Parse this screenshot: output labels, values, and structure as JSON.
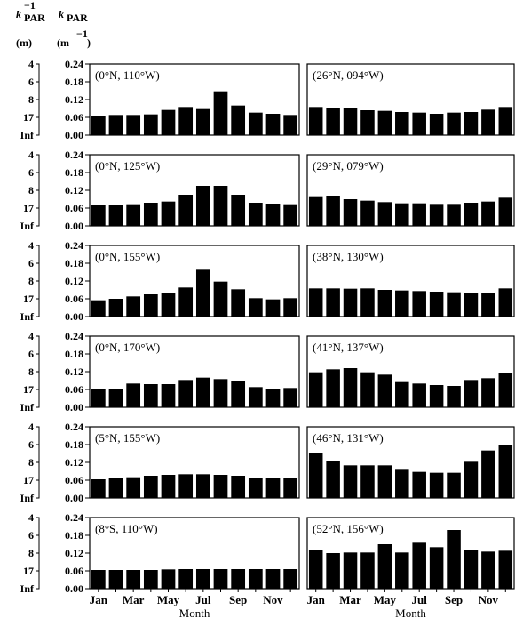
{
  "header": {
    "left_top": "k",
    "left_sub": "PAR",
    "left_sup": "−1",
    "left_unit": "(m)",
    "right_top": "k",
    "right_sub": "PAR",
    "right_unit_base": "(m",
    "right_unit_sup": "−1",
    "right_unit_close": ")"
  },
  "chart_data": {
    "type": "bar",
    "layout": "6 rows × 2 columns of small-multiple bar charts",
    "categories": [
      "Jan",
      "Feb",
      "Mar",
      "Apr",
      "May",
      "Jun",
      "Jul",
      "Aug",
      "Sep",
      "Oct",
      "Nov",
      "Dec"
    ],
    "x_tick_labels": [
      "Jan",
      "Mar",
      "May",
      "Jul",
      "Sep",
      "Nov"
    ],
    "xlabel": "Month",
    "ylim": [
      0,
      0.24
    ],
    "y_ticks": [
      "0.24",
      "0.18",
      "0.12",
      "0.06",
      "0.00"
    ],
    "y_ticks_inverse": [
      "4",
      "6",
      "8",
      "17",
      "Inf"
    ],
    "bar_color": "#000000",
    "panels": [
      {
        "location": "(0°N, 110°W)",
        "values": [
          0.065,
          0.068,
          0.068,
          0.07,
          0.085,
          0.095,
          0.088,
          0.148,
          0.1,
          0.076,
          0.072,
          0.068
        ]
      },
      {
        "location": "(26°N, 094°W)",
        "values": [
          0.095,
          0.092,
          0.09,
          0.084,
          0.082,
          0.078,
          0.076,
          0.072,
          0.076,
          0.078,
          0.086,
          0.095
        ]
      },
      {
        "location": "(0°N, 125°W)",
        "values": [
          0.072,
          0.072,
          0.073,
          0.078,
          0.082,
          0.105,
          0.135,
          0.135,
          0.105,
          0.078,
          0.075,
          0.073
        ]
      },
      {
        "location": "(29°N, 079°W)",
        "values": [
          0.1,
          0.102,
          0.09,
          0.085,
          0.08,
          0.076,
          0.076,
          0.074,
          0.074,
          0.078,
          0.082,
          0.095
        ]
      },
      {
        "location": "(0°N, 155°W)",
        "values": [
          0.055,
          0.06,
          0.068,
          0.075,
          0.08,
          0.098,
          0.158,
          0.118,
          0.092,
          0.062,
          0.058,
          0.062
        ]
      },
      {
        "location": "(38°N, 130°W)",
        "values": [
          0.095,
          0.095,
          0.094,
          0.095,
          0.09,
          0.088,
          0.086,
          0.084,
          0.082,
          0.08,
          0.08,
          0.095
        ]
      },
      {
        "location": "(0°N, 170°W)",
        "values": [
          0.06,
          0.062,
          0.08,
          0.078,
          0.078,
          0.092,
          0.1,
          0.095,
          0.088,
          0.068,
          0.062,
          0.065
        ]
      },
      {
        "location": "(41°N, 137°W)",
        "values": [
          0.118,
          0.128,
          0.132,
          0.118,
          0.11,
          0.085,
          0.08,
          0.075,
          0.072,
          0.092,
          0.098,
          0.115
        ]
      },
      {
        "location": "(5°N, 155°W)",
        "values": [
          0.063,
          0.068,
          0.07,
          0.075,
          0.078,
          0.08,
          0.08,
          0.078,
          0.075,
          0.068,
          0.068,
          0.068
        ]
      },
      {
        "location": "(46°N, 131°W)",
        "values": [
          0.15,
          0.125,
          0.11,
          0.11,
          0.11,
          0.095,
          0.088,
          0.085,
          0.085,
          0.122,
          0.16,
          0.18
        ]
      },
      {
        "location": "(8°S, 110°W)",
        "values": [
          0.063,
          0.063,
          0.063,
          0.063,
          0.065,
          0.066,
          0.066,
          0.066,
          0.066,
          0.066,
          0.066,
          0.066
        ]
      },
      {
        "location": "(52°N, 156°W)",
        "values": [
          0.13,
          0.12,
          0.122,
          0.122,
          0.15,
          0.122,
          0.155,
          0.14,
          0.198,
          0.13,
          0.125,
          0.128
        ]
      }
    ]
  }
}
